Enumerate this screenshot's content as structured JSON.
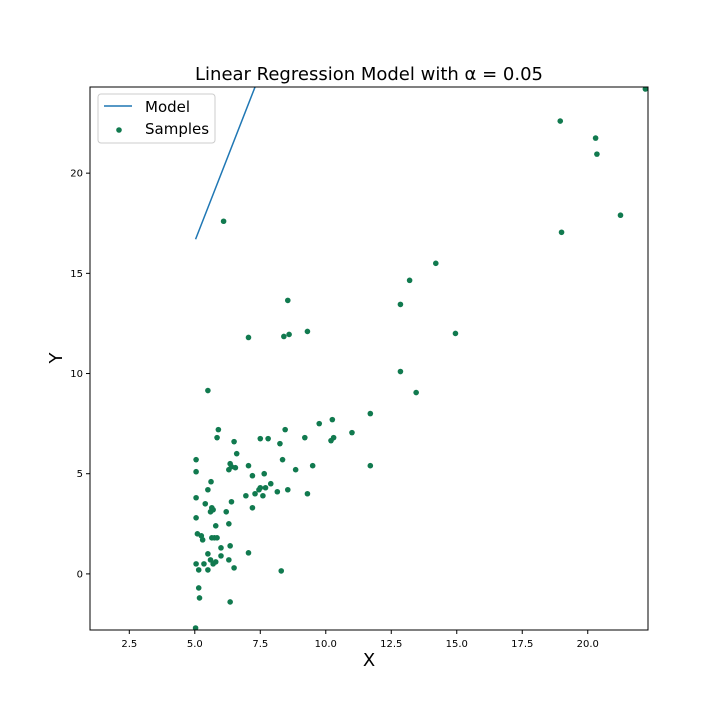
{
  "chart_data": {
    "type": "scatter",
    "title": "Linear Regression Model with α = 0.05",
    "xlabel": "X",
    "ylabel": "Y",
    "xlim": [
      1.0,
      22.3
    ],
    "ylim": [
      -2.8,
      24.3
    ],
    "xticks": [
      2.5,
      5.0,
      7.5,
      10.0,
      12.5,
      15.0,
      17.5,
      20.0
    ],
    "xtick_labels": [
      "2.5",
      "5.0",
      "7.5",
      "10.0",
      "12.5",
      "15.0",
      "17.5",
      "20.0"
    ],
    "yticks": [
      0,
      5,
      10,
      15,
      20
    ],
    "ytick_labels": [
      "0",
      "5",
      "10",
      "15",
      "20"
    ],
    "grid": false,
    "legend_position": "top-left",
    "series": [
      {
        "name": "Model",
        "kind": "line",
        "color": "#1f77b4",
        "x": [
          5.03,
          7.3
        ],
        "y": [
          16.7,
          24.3
        ]
      },
      {
        "name": "Samples",
        "kind": "scatter",
        "color": "#117a4f",
        "points": [
          [
            5.03,
            -2.7
          ],
          [
            5.18,
            -1.2
          ],
          [
            5.15,
            -0.7
          ],
          [
            6.35,
            -1.4
          ],
          [
            5.05,
            0.5
          ],
          [
            5.15,
            0.2
          ],
          [
            5.35,
            0.5
          ],
          [
            5.5,
            0.2
          ],
          [
            5.6,
            0.7
          ],
          [
            5.7,
            0.5
          ],
          [
            5.8,
            0.6
          ],
          [
            6.0,
            0.9
          ],
          [
            6.3,
            0.7
          ],
          [
            6.5,
            0.3
          ],
          [
            8.3,
            0.15
          ],
          [
            5.5,
            1.0
          ],
          [
            6.0,
            1.3
          ],
          [
            6.35,
            1.4
          ],
          [
            7.05,
            1.05
          ],
          [
            5.1,
            2.0
          ],
          [
            5.25,
            1.9
          ],
          [
            5.3,
            1.7
          ],
          [
            5.65,
            1.8
          ],
          [
            5.75,
            1.8
          ],
          [
            5.85,
            1.8
          ],
          [
            5.05,
            2.8
          ],
          [
            5.8,
            2.4
          ],
          [
            6.3,
            2.5
          ],
          [
            5.05,
            3.8
          ],
          [
            5.4,
            3.5
          ],
          [
            5.6,
            3.1
          ],
          [
            5.65,
            3.3
          ],
          [
            5.7,
            3.2
          ],
          [
            6.2,
            3.1
          ],
          [
            6.4,
            3.6
          ],
          [
            7.2,
            3.3
          ],
          [
            6.95,
            3.9
          ],
          [
            5.5,
            4.2
          ],
          [
            5.62,
            4.6
          ],
          [
            7.3,
            4.0
          ],
          [
            7.45,
            4.2
          ],
          [
            7.5,
            4.3
          ],
          [
            7.6,
            3.9
          ],
          [
            7.7,
            4.3
          ],
          [
            7.9,
            4.5
          ],
          [
            8.15,
            4.1
          ],
          [
            8.55,
            4.2
          ],
          [
            9.3,
            4.0
          ],
          [
            5.05,
            5.7
          ],
          [
            5.05,
            5.1
          ],
          [
            6.3,
            5.2
          ],
          [
            6.4,
            5.35
          ],
          [
            6.35,
            5.5
          ],
          [
            6.55,
            5.3
          ],
          [
            7.05,
            5.4
          ],
          [
            7.65,
            5.0
          ],
          [
            7.2,
            4.9
          ],
          [
            8.35,
            5.7
          ],
          [
            8.85,
            5.2
          ],
          [
            9.5,
            5.4
          ],
          [
            11.7,
            5.4
          ],
          [
            5.85,
            6.8
          ],
          [
            5.9,
            7.2
          ],
          [
            6.5,
            6.6
          ],
          [
            6.6,
            6.0
          ],
          [
            7.5,
            6.75
          ],
          [
            7.8,
            6.75
          ],
          [
            8.25,
            6.5
          ],
          [
            8.45,
            7.2
          ],
          [
            9.2,
            6.8
          ],
          [
            9.75,
            7.5
          ],
          [
            10.2,
            6.65
          ],
          [
            10.3,
            6.8
          ],
          [
            10.25,
            7.7
          ],
          [
            11.0,
            7.05
          ],
          [
            11.7,
            8.0
          ],
          [
            5.5,
            9.15
          ],
          [
            7.05,
            11.8
          ],
          [
            8.4,
            11.85
          ],
          [
            8.6,
            11.95
          ],
          [
            9.3,
            12.1
          ],
          [
            12.85,
            10.1
          ],
          [
            13.45,
            9.05
          ],
          [
            8.55,
            13.65
          ],
          [
            12.85,
            13.45
          ],
          [
            13.2,
            14.65
          ],
          [
            14.2,
            15.5
          ],
          [
            14.95,
            12.0
          ],
          [
            6.1,
            17.6
          ],
          [
            19.0,
            17.05
          ],
          [
            21.25,
            17.9
          ],
          [
            20.35,
            20.95
          ],
          [
            20.3,
            21.75
          ],
          [
            18.95,
            22.6
          ],
          [
            22.2,
            24.2
          ]
        ]
      }
    ]
  }
}
